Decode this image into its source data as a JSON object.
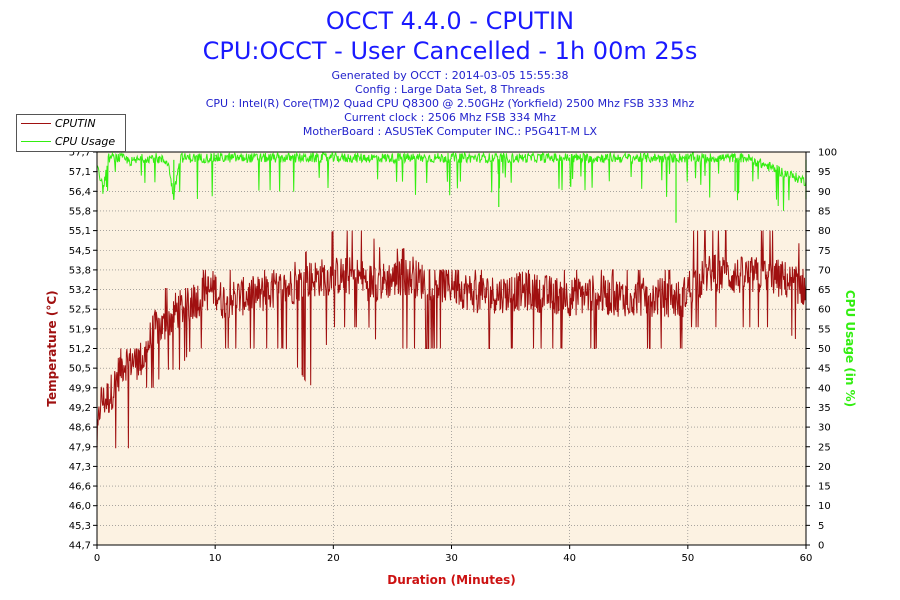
{
  "header": {
    "title1": "OCCT 4.4.0 - CPUTIN",
    "title2": "CPU:OCCT - User Cancelled - 1h 00m 25s",
    "info": [
      "Generated by OCCT : 2014-03-05 15:55:38",
      "Config : Large Data Set, 8 Threads",
      "CPU : Intel(R) Core(TM)2 Quad CPU Q8300 @ 2.50GHz (Yorkfield) 2500 Mhz FSB 333 Mhz",
      "Current clock : 2506 Mhz FSB 334 Mhz",
      "MotherBoard : ASUSTeK Computer INC.: P5G41T-M LX"
    ]
  },
  "legend": {
    "items": [
      {
        "label": "CPUTIN",
        "color": "#a01010"
      },
      {
        "label": "CPU Usage",
        "color": "#33ee11"
      }
    ]
  },
  "colors": {
    "plot_bg": "#fcf2e2",
    "grid": "#777777",
    "temp": "#a01010",
    "usage": "#33ee11",
    "xaxis_title": "#cc1111",
    "ylabel_left": "#a01010",
    "ylabel_right": "#33ee11"
  },
  "chart_data": {
    "type": "line",
    "xlabel": "Duration (Minutes)",
    "ylabel": "Temperature (°C)",
    "y2label": "CPU Usage (in %)",
    "xlim": [
      0,
      60
    ],
    "ylim": [
      44.7,
      57.7
    ],
    "y2lim": [
      0,
      100
    ],
    "x_ticks": [
      "0",
      "10",
      "20",
      "30",
      "40",
      "50",
      "60"
    ],
    "y_ticks": [
      "44,7",
      "45,3",
      "46,0",
      "46,6",
      "47,3",
      "47,9",
      "48,6",
      "49,2",
      "49,9",
      "50,5",
      "51,2",
      "51,9",
      "52,5",
      "53,2",
      "53,8",
      "54,5",
      "55,1",
      "55,8",
      "56,4",
      "57,1",
      "57,7"
    ],
    "y2_ticks": [
      "0",
      "5",
      "10",
      "15",
      "20",
      "25",
      "30",
      "35",
      "40",
      "45",
      "50",
      "55",
      "60",
      "65",
      "70",
      "75",
      "80",
      "85",
      "90",
      "95",
      "100"
    ],
    "grid": true,
    "legend_position": "top-left",
    "series": [
      {
        "name": "CPUTIN",
        "axis": "left",
        "x": [
          0,
          0.3,
          0.6,
          1,
          1.5,
          2,
          2.5,
          3,
          3.5,
          4,
          4.5,
          5,
          5.5,
          6,
          6.5,
          7,
          8,
          9,
          10,
          10.5,
          12,
          14,
          16,
          18,
          20,
          22,
          23,
          24,
          26,
          28,
          30,
          32,
          34,
          36,
          38,
          40,
          42,
          44,
          46,
          48,
          49.5,
          50,
          52,
          54,
          56,
          58,
          60
        ],
        "y": [
          48.0,
          49.5,
          49.5,
          49.6,
          50.0,
          50.6,
          50.8,
          50.8,
          50.8,
          50.9,
          51.5,
          51.9,
          51.9,
          52.0,
          52.4,
          52.5,
          52.7,
          53.0,
          53.2,
          52.8,
          52.9,
          53.0,
          53.2,
          53.5,
          53.6,
          53.6,
          53.4,
          53.4,
          53.6,
          53.4,
          53.3,
          53.0,
          53.0,
          53.1,
          53.0,
          52.9,
          53.0,
          52.9,
          52.9,
          52.9,
          52.8,
          53.2,
          53.7,
          53.6,
          53.6,
          53.5,
          53.2
        ],
        "min_envelope": [
          47.2,
          47.9,
          47.9,
          47.9,
          47.9,
          47.9,
          47.9,
          47.9,
          49.9,
          49.9,
          49.9,
          49.9,
          50.5,
          50.5,
          50.5,
          50.5,
          51.2,
          51.2,
          51.2,
          51.2,
          51.2,
          51.2,
          51.2,
          49.9,
          51.9,
          51.9,
          51.9,
          51.2,
          51.2,
          51.2,
          51.2,
          51.2,
          51.2,
          51.2,
          51.2,
          51.2,
          51.2,
          51.2,
          51.2,
          51.2,
          51.2,
          51.9,
          51.9,
          51.9,
          51.9,
          51.9,
          51.2
        ],
        "max_envelope": [
          49.9,
          49.9,
          49.9,
          50.5,
          50.5,
          51.2,
          51.2,
          51.2,
          51.2,
          51.9,
          52.5,
          52.5,
          53.2,
          53.2,
          53.2,
          53.2,
          53.2,
          53.8,
          53.8,
          53.8,
          53.8,
          53.8,
          53.8,
          54.5,
          55.1,
          55.1,
          55.1,
          54.5,
          54.5,
          53.8,
          53.8,
          53.8,
          53.8,
          53.8,
          53.8,
          53.8,
          53.8,
          53.8,
          53.8,
          53.8,
          53.8,
          55.1,
          55.1,
          55.1,
          55.1,
          55.1,
          54.5
        ]
      },
      {
        "name": "CPU Usage",
        "axis": "right",
        "x": [
          0,
          0.5,
          1,
          2,
          3,
          4,
          5,
          6,
          6.5,
          7,
          10,
          15,
          20,
          25,
          30,
          34,
          35,
          40,
          45,
          48,
          49,
          50,
          55,
          60
        ],
        "y": [
          97,
          90,
          98,
          98,
          97,
          98,
          98,
          97,
          88,
          98,
          98,
          98,
          98,
          98,
          98,
          98,
          98,
          98,
          98,
          98,
          98,
          98,
          98,
          92
        ],
        "dips": [
          {
            "x": 6.5,
            "y": 88
          },
          {
            "x": 34,
            "y": 86
          },
          {
            "x": 49,
            "y": 82
          },
          {
            "x": 54,
            "y": 90
          },
          {
            "x": 60,
            "y": 88
          }
        ]
      }
    ]
  }
}
